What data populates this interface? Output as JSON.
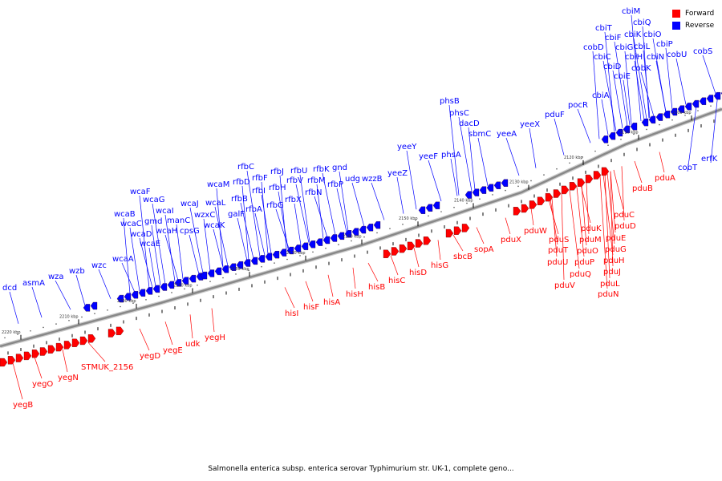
{
  "title": "Salmonella enterica subsp. enterica serovar Typhimurium str. UK-1, complete geno...",
  "legend": [
    {
      "label": "Forward",
      "color": "#ff0000"
    },
    {
      "label": "Reverse",
      "color": "#0000ff"
    }
  ],
  "colors": {
    "forward": "#ff0000",
    "reverse": "#0000ff",
    "backbone": "#888888"
  },
  "scale": {
    "labels": [
      "2220 kbp",
      "2210 kbp",
      "2200 kbp",
      "2190 kbp",
      "2180 kbp",
      "2170 kbp",
      "2160 kbp",
      "2150 kbp",
      "2140 kbp",
      "2130 kbp",
      "2120 kbp",
      "2110 kbp",
      "2100 kbp"
    ]
  },
  "reverse_genes": [
    "dcd",
    "asmA",
    "wza",
    "wzb",
    "wzc",
    "wcaA",
    "wcaB",
    "wcaC",
    "wcaD",
    "wcaE",
    "wcaF",
    "wcaG",
    "gmd",
    "wcaI",
    "wcaH",
    "manC",
    "cpsG",
    "wcaJ",
    "wzxC",
    "wcaK",
    "wcaL",
    "wcaM",
    "galF",
    "rfbB",
    "rfbD",
    "rfbA",
    "rfbC",
    "rfbF",
    "rfbI",
    "rfbG",
    "rfbJ",
    "rfbH",
    "rfbV",
    "rfbX",
    "rfbU",
    "rfbN",
    "rfbM",
    "rfbP",
    "rfbK",
    "gnd",
    "udg",
    "wzzB",
    "yeeZ",
    "yeeY",
    "yeeF",
    "phsA",
    "phsB",
    "phsC",
    "dacD",
    "sbmC",
    "yeeA",
    "yeeX",
    "pduF",
    "pocR",
    "cbiA",
    "cobT",
    "erfK",
    "cbiE",
    "cbiD",
    "cbiC",
    "cobD",
    "cbiT",
    "cbiF",
    "cbiG",
    "cbiH",
    "cbiK",
    "cbiQ",
    "cbiM",
    "cbiO",
    "cbiL",
    "cbiN",
    "cobK",
    "cbiP",
    "cobU",
    "cobS"
  ],
  "forward_genes": [
    "yegB",
    "yegO",
    "yegN",
    "STMUK_2156",
    "yegD",
    "yegE",
    "udk",
    "yegH",
    "hisI",
    "hisF",
    "hisA",
    "hisH",
    "hisB",
    "hisC",
    "hisD",
    "hisG",
    "sbcB",
    "sopA",
    "pduX",
    "pduW",
    "pduS",
    "pduT",
    "pduU",
    "pduV",
    "pduQ",
    "pduP",
    "pduO",
    "pduM",
    "pduK",
    "pduN",
    "pduL",
    "pduJ",
    "pduH",
    "pduG",
    "pduE",
    "pduD",
    "pduC",
    "pduB",
    "pduA"
  ]
}
